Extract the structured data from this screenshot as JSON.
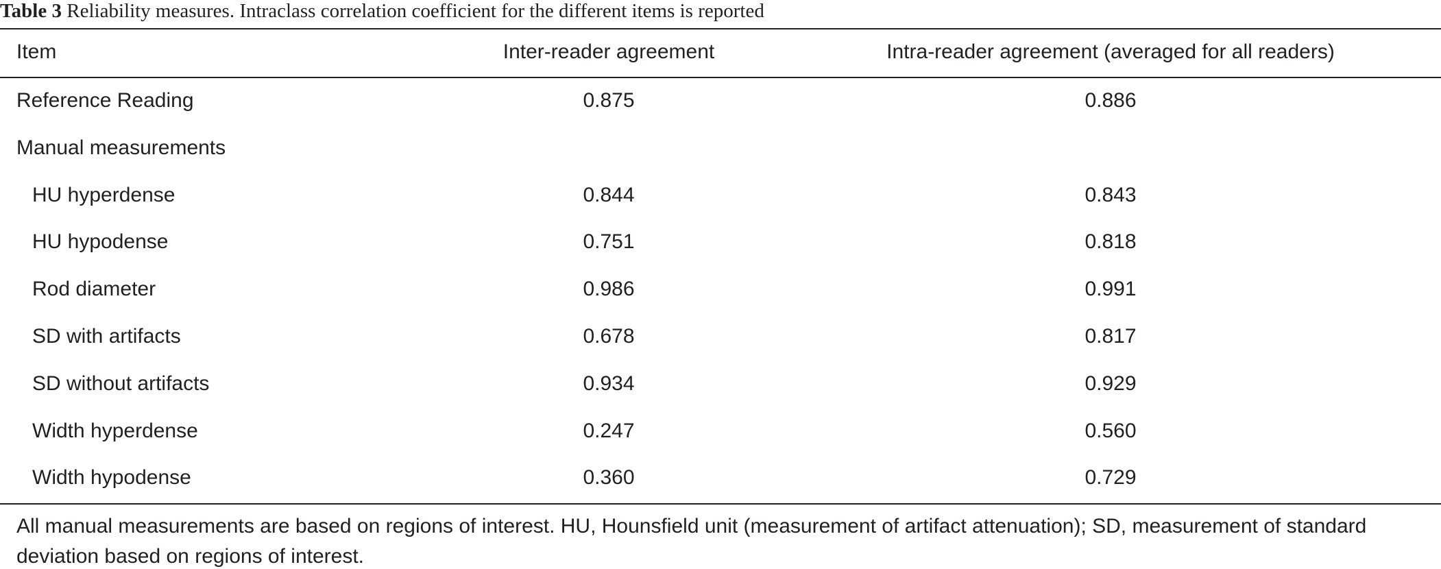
{
  "caption": {
    "label": "Table 3",
    "text": "Reliability measures. Intraclass correlation coefficient for the different items is reported"
  },
  "table": {
    "header": [
      "Item",
      "Inter-reader agreement",
      "Intra-reader agreement (averaged for all readers)"
    ],
    "rows": [
      [
        "Reference Reading",
        "0.875",
        "0.886"
      ],
      {
        "group": "Manual measurements",
        "rows": [
          [
            "HU hyperdense",
            "0.844",
            "0.843"
          ],
          [
            "HU hypodense",
            "0.751",
            "0.818"
          ],
          [
            "Rod diameter",
            "0.986",
            "0.991"
          ],
          [
            "SD with artifacts",
            "0.678",
            "0.817"
          ],
          [
            "SD without artifacts",
            "0.934",
            "0.929"
          ],
          [
            "Width hyperdense",
            "0.247",
            "0.560"
          ],
          [
            "Width hypodense",
            "0.360",
            "0.729"
          ]
        ]
      }
    ],
    "footnote": "All manual measurements are based on regions of interest. HU, Hounsfield unit (measurement of artifact attenuation); SD, measurement of standard deviation based on regions of interest."
  }
}
